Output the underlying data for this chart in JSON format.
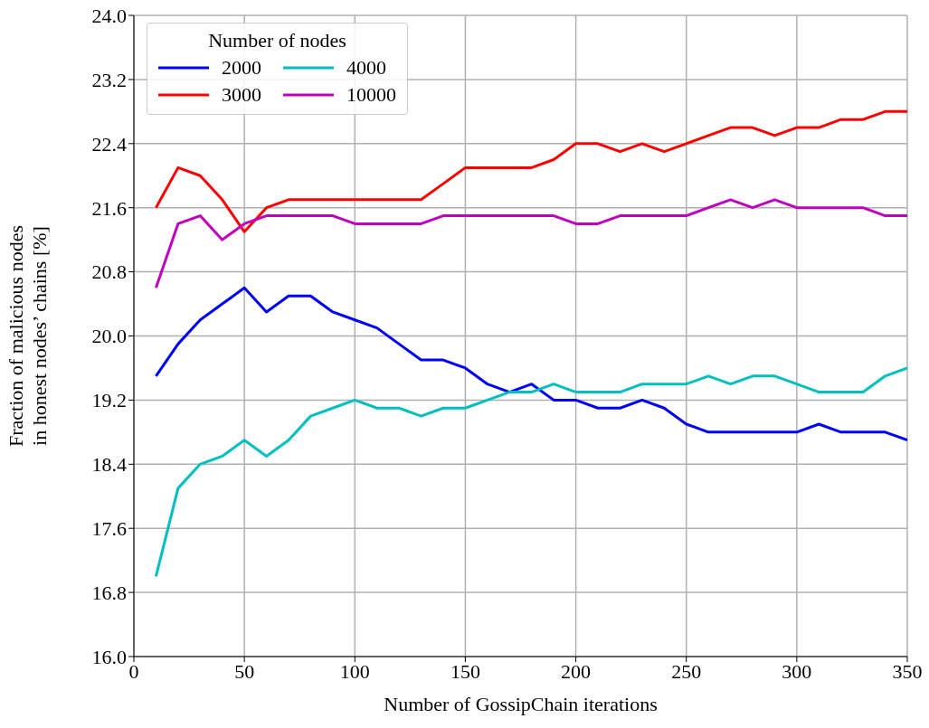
{
  "chart_data": {
    "type": "line",
    "xlabel": "Number of GossipChain iterations",
    "ylabel": "Fraction of malicious nodes\nin honest nodes’ chains [%]",
    "legend_title": "Number of nodes",
    "legend": "top left",
    "grid": true,
    "marker": "none",
    "line_style": "solid",
    "x": [
      10,
      20,
      30,
      40,
      50,
      60,
      70,
      80,
      90,
      100,
      110,
      120,
      130,
      140,
      150,
      160,
      170,
      180,
      190,
      200,
      210,
      220,
      230,
      240,
      250,
      260,
      270,
      280,
      290,
      300,
      310,
      320,
      330,
      340,
      350
    ],
    "xlim": [
      0,
      350
    ],
    "xticks": [
      0,
      50,
      100,
      150,
      200,
      250,
      300,
      350
    ],
    "ylim": [
      16,
      24
    ],
    "yticks": [
      {
        "value": 16,
        "label": "16.0"
      },
      {
        "value": 16.8,
        "label": "16.8"
      },
      {
        "value": 17.6,
        "label": "17.6"
      },
      {
        "value": 18.4,
        "label": "18.4"
      },
      {
        "value": 19.2,
        "label": "19.2"
      },
      {
        "value": 20,
        "label": "20.0"
      },
      {
        "value": 20.8,
        "label": "20.8"
      },
      {
        "value": 21.6,
        "label": "21.6"
      },
      {
        "value": 22.4,
        "label": "22.4"
      },
      {
        "value": 23.2,
        "label": "23.2"
      },
      {
        "value": 24,
        "label": "24.0"
      }
    ],
    "series": [
      {
        "name": "2000",
        "color": "#0000ff",
        "values": [
          19.5,
          19.9,
          20.2,
          20.4,
          20.6,
          20.3,
          20.5,
          20.5,
          20.3,
          20.2,
          20.1,
          19.9,
          19.7,
          19.7,
          19.6,
          19.4,
          19.3,
          19.4,
          19.2,
          19.2,
          19.1,
          19.1,
          19.2,
          19.1,
          18.9,
          18.8,
          18.8,
          18.8,
          18.8,
          18.8,
          18.9,
          18.8,
          18.8,
          18.8,
          18.7
        ]
      },
      {
        "name": "3000",
        "color": "#ff0000",
        "values": [
          21.6,
          22.1,
          22.0,
          21.7,
          21.3,
          21.6,
          21.7,
          21.7,
          21.7,
          21.7,
          21.7,
          21.7,
          21.7,
          21.9,
          22.1,
          22.1,
          22.1,
          22.1,
          22.2,
          22.4,
          22.4,
          22.3,
          22.4,
          22.3,
          22.4,
          22.5,
          22.6,
          22.6,
          22.5,
          22.6,
          22.6,
          22.7,
          22.7,
          22.8,
          22.8
        ]
      },
      {
        "name": "4000",
        "color": "#00bfbf",
        "values": [
          17.0,
          18.1,
          18.4,
          18.5,
          18.7,
          18.5,
          18.7,
          19.0,
          19.1,
          19.2,
          19.1,
          19.1,
          19.0,
          19.1,
          19.1,
          19.2,
          19.3,
          19.3,
          19.4,
          19.3,
          19.3,
          19.3,
          19.4,
          19.4,
          19.4,
          19.5,
          19.4,
          19.5,
          19.5,
          19.4,
          19.3,
          19.3,
          19.3,
          19.5,
          19.6
        ]
      },
      {
        "name": "10000",
        "color": "#bf00bf",
        "values": [
          20.6,
          21.4,
          21.5,
          21.2,
          21.4,
          21.5,
          21.5,
          21.5,
          21.5,
          21.4,
          21.4,
          21.4,
          21.4,
          21.5,
          21.5,
          21.5,
          21.5,
          21.5,
          21.5,
          21.4,
          21.4,
          21.5,
          21.5,
          21.5,
          21.5,
          21.6,
          21.7,
          21.6,
          21.7,
          21.6,
          21.6,
          21.6,
          21.6,
          21.5,
          21.5
        ]
      }
    ]
  }
}
